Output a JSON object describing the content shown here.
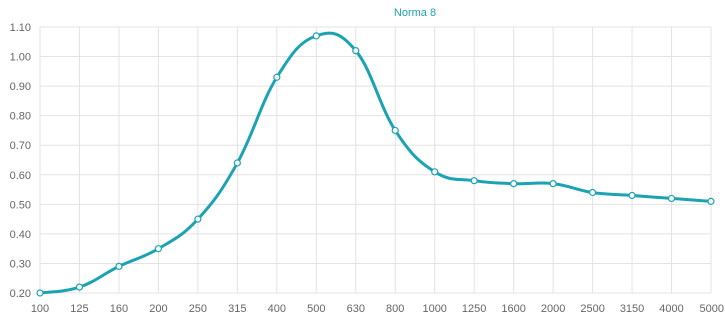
{
  "legend": {
    "label": "Norma 8"
  },
  "colors": {
    "series": "#1ba3b3",
    "grid": "#e3e3e3",
    "axis_text": "#666666",
    "point_fill": "#ffffff"
  },
  "chart_data": {
    "type": "line",
    "title": "",
    "xlabel": "",
    "ylabel": "",
    "categories": [
      "100",
      "125",
      "160",
      "200",
      "250",
      "315",
      "400",
      "500",
      "630",
      "800",
      "1000",
      "1250",
      "1600",
      "2000",
      "2500",
      "3150",
      "4000",
      "5000"
    ],
    "series": [
      {
        "name": "Norma 8",
        "values": [
          0.2,
          0.22,
          0.29,
          0.35,
          0.45,
          0.64,
          0.93,
          1.07,
          1.02,
          0.75,
          0.61,
          0.58,
          0.57,
          0.57,
          0.54,
          0.53,
          0.52,
          0.51
        ]
      }
    ],
    "ylim": [
      0.2,
      1.1
    ],
    "yticks": [
      "0.20",
      "0.30",
      "0.40",
      "0.50",
      "0.60",
      "0.70",
      "0.80",
      "0.90",
      "1.00",
      "1.10"
    ],
    "grid": true,
    "legend_position": "top-center",
    "smooth": true
  }
}
